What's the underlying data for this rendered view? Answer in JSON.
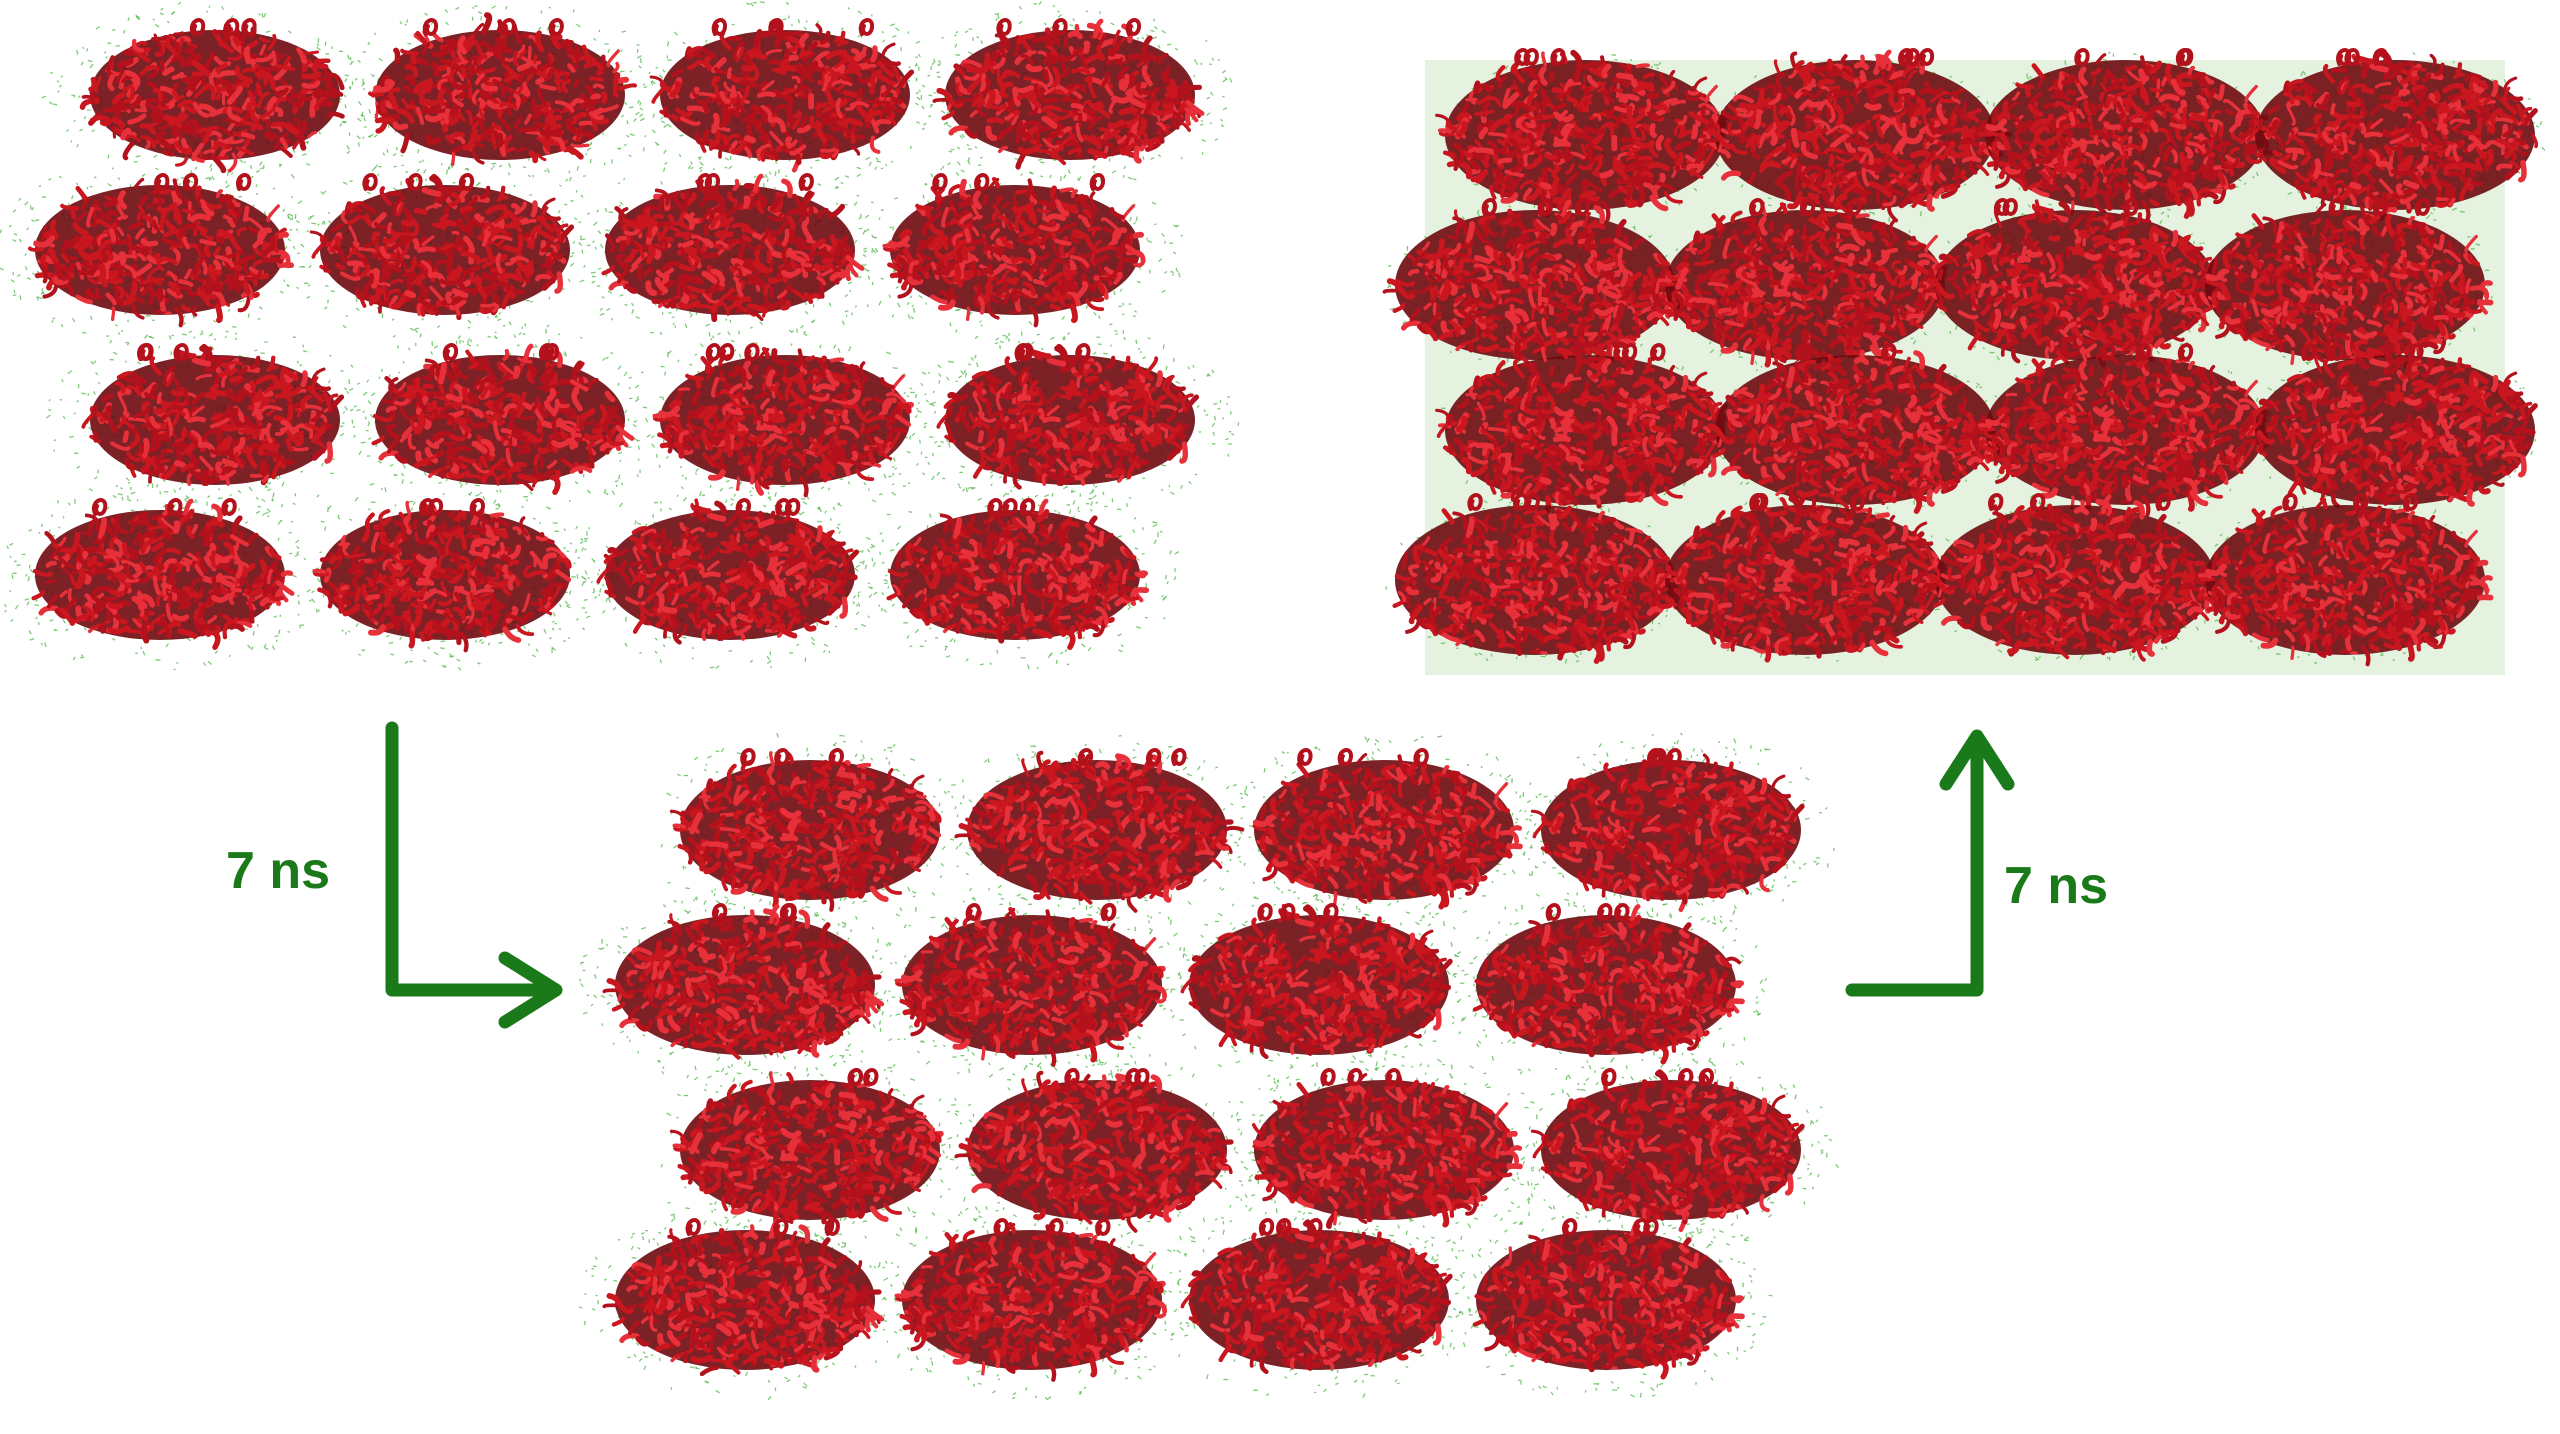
{
  "labels": {
    "first_step": "7 ns",
    "second_step": "7 ns"
  },
  "colors": {
    "protein_red": "#b3111b",
    "protein_dark": "#6e0a10",
    "protein_light": "#e8303a",
    "water_green": "#52b84a",
    "arrow_green": "#1a7a1a",
    "background": "#ffffff"
  },
  "snapshots": [
    {
      "id": "initial-crystal",
      "rows": 4,
      "cols": 4,
      "packing": "loose"
    },
    {
      "id": "intermediate",
      "rows": 4,
      "cols": 4,
      "packing": "medium"
    },
    {
      "id": "final-crystal",
      "rows": 4,
      "cols": 4,
      "packing": "dense"
    }
  ]
}
